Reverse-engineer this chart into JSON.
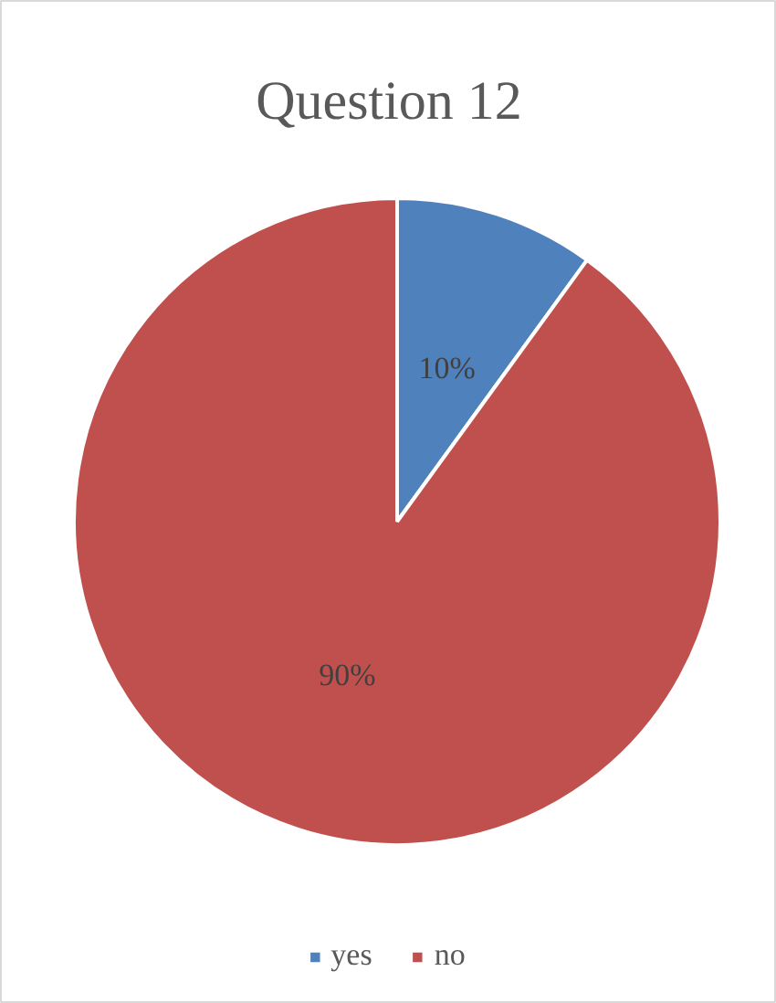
{
  "chart_data": {
    "type": "pie",
    "title": "Question 12",
    "categories": [
      "yes",
      "no"
    ],
    "values": [
      10,
      90
    ],
    "colors": [
      "#4f81bd",
      "#c0504d"
    ],
    "data_labels": true,
    "value_labels": [
      "10%",
      "90%"
    ],
    "legend": "bottom"
  }
}
